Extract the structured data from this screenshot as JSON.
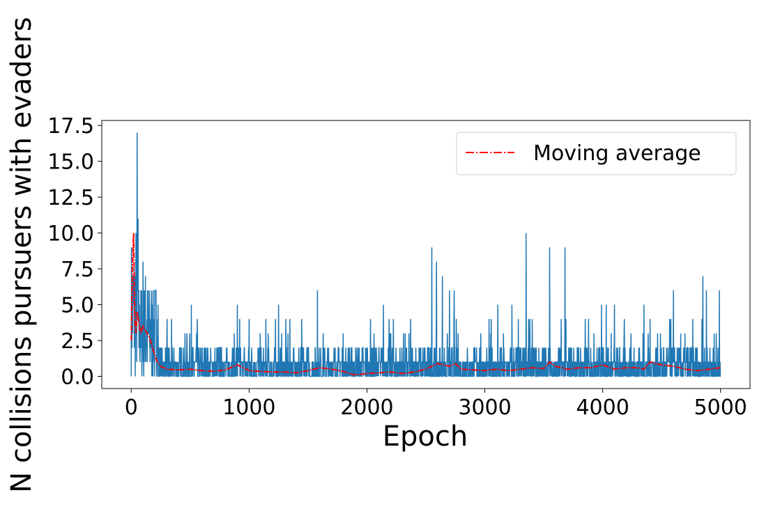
{
  "chart_data": {
    "type": "line",
    "title": "",
    "xlabel": "Epoch",
    "ylabel": "N collisions pursuers with evaders",
    "xlim": [
      -250,
      5250
    ],
    "ylim": [
      -0.85,
      17.85
    ],
    "x_ticks": [
      0,
      1000,
      2000,
      3000,
      4000,
      5000
    ],
    "x_tick_labels": [
      "0",
      "1000",
      "2000",
      "3000",
      "4000",
      "5000"
    ],
    "y_ticks": [
      0.0,
      2.5,
      5.0,
      7.5,
      10.0,
      12.5,
      15.0,
      17.5
    ],
    "y_tick_labels": [
      "0.0",
      "2.5",
      "5.0",
      "7.5",
      "10.0",
      "12.5",
      "15.0",
      "17.5"
    ],
    "grid": false,
    "legend_position": "top-right",
    "series": [
      {
        "name": "",
        "color": "#1f77b4",
        "style": "solid",
        "description_points": [
          [
            0,
            3
          ],
          [
            10,
            8
          ],
          [
            20,
            10
          ],
          [
            30,
            2
          ],
          [
            40,
            6
          ],
          [
            50,
            17
          ],
          [
            60,
            11
          ],
          [
            70,
            5
          ],
          [
            80,
            4
          ],
          [
            90,
            2
          ],
          [
            100,
            8
          ],
          [
            110,
            7
          ],
          [
            120,
            4
          ],
          [
            130,
            7
          ],
          [
            140,
            3
          ],
          [
            150,
            2
          ],
          [
            160,
            5
          ],
          [
            180,
            4
          ],
          [
            200,
            6
          ],
          [
            220,
            3
          ],
          [
            250,
            3
          ],
          [
            300,
            2
          ],
          [
            500,
            5
          ],
          [
            520,
            4
          ],
          [
            560,
            3
          ],
          [
            900,
            5
          ],
          [
            1000,
            4
          ],
          [
            1100,
            4
          ],
          [
            1250,
            5
          ],
          [
            1580,
            6
          ],
          [
            1600,
            4
          ],
          [
            1700,
            4
          ],
          [
            2150,
            5
          ],
          [
            2500,
            4
          ],
          [
            2550,
            9
          ],
          [
            2600,
            8
          ],
          [
            2650,
            7
          ],
          [
            2700,
            6
          ],
          [
            2750,
            6
          ],
          [
            3100,
            5
          ],
          [
            3200,
            5
          ],
          [
            3350,
            10
          ],
          [
            3400,
            4
          ],
          [
            3550,
            9
          ],
          [
            3680,
            9
          ],
          [
            3900,
            4
          ],
          [
            4000,
            5
          ],
          [
            4050,
            5
          ],
          [
            4100,
            5
          ],
          [
            4350,
            5
          ],
          [
            4450,
            4
          ],
          [
            4600,
            6
          ],
          [
            4850,
            7
          ],
          [
            4900,
            6
          ],
          [
            5000,
            6
          ]
        ],
        "baseline_max": 2,
        "spike_values": [
          [
            40,
            10
          ],
          [
            50,
            17
          ],
          [
            58,
            11
          ],
          [
            100,
            8
          ],
          [
            120,
            7
          ],
          [
            200,
            6
          ],
          [
            510,
            5
          ],
          [
            560,
            4
          ],
          [
            900,
            5
          ],
          [
            1000,
            4
          ],
          [
            1250,
            5
          ],
          [
            1580,
            6
          ],
          [
            2140,
            5
          ],
          [
            2550,
            9
          ],
          [
            2590,
            8
          ],
          [
            2640,
            7
          ],
          [
            2700,
            6
          ],
          [
            2740,
            6
          ],
          [
            3110,
            5
          ],
          [
            3230,
            5
          ],
          [
            3350,
            10
          ],
          [
            3550,
            9
          ],
          [
            3680,
            9
          ],
          [
            3990,
            5
          ],
          [
            4030,
            5
          ],
          [
            4100,
            5
          ],
          [
            4350,
            5
          ],
          [
            4600,
            6
          ],
          [
            4850,
            7
          ],
          [
            4880,
            6
          ],
          [
            4990,
            6
          ]
        ]
      },
      {
        "name": "Moving average",
        "color": "#ff0000",
        "style": "dashdot",
        "x": [
          0,
          10,
          20,
          30,
          40,
          50,
          60,
          80,
          100,
          120,
          150,
          180,
          200,
          220,
          250,
          300,
          400,
          500,
          600,
          700,
          800,
          900,
          1000,
          1100,
          1200,
          1300,
          1400,
          1500,
          1600,
          1700,
          1800,
          1850,
          1900,
          2000,
          2100,
          2200,
          2300,
          2400,
          2500,
          2600,
          2700,
          2750,
          2800,
          2900,
          3000,
          3100,
          3200,
          3300,
          3400,
          3500,
          3550,
          3600,
          3700,
          3800,
          3900,
          4000,
          4100,
          4200,
          4300,
          4350,
          4400,
          4500,
          4600,
          4700,
          4800,
          4900,
          5000
        ],
        "y": [
          2.5,
          8.0,
          10.0,
          4.0,
          3.0,
          4.5,
          4.0,
          3.0,
          3.5,
          3.2,
          2.8,
          2.0,
          1.5,
          1.0,
          0.7,
          0.5,
          0.45,
          0.5,
          0.4,
          0.35,
          0.45,
          0.8,
          0.4,
          0.35,
          0.3,
          0.3,
          0.25,
          0.4,
          0.6,
          0.5,
          0.35,
          0.2,
          0.1,
          0.2,
          0.25,
          0.3,
          0.2,
          0.3,
          0.5,
          0.9,
          0.7,
          0.9,
          0.5,
          0.45,
          0.4,
          0.5,
          0.4,
          0.5,
          0.6,
          0.55,
          1.0,
          0.7,
          0.5,
          0.6,
          0.6,
          0.8,
          0.5,
          0.6,
          0.6,
          0.5,
          1.0,
          0.8,
          0.7,
          0.5,
          0.4,
          0.5,
          0.6
        ]
      }
    ]
  }
}
